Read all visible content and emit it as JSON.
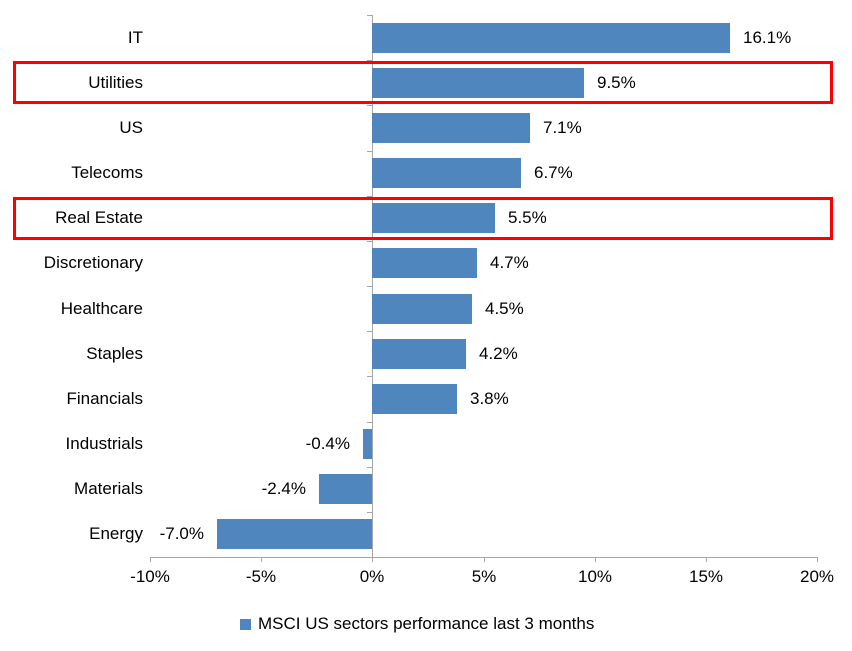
{
  "chart_data": {
    "type": "bar",
    "orientation": "horizontal",
    "title": "",
    "categories": [
      "IT",
      "Utilities",
      "US",
      "Telecoms",
      "Real Estate",
      "Discretionary",
      "Healthcare",
      "Staples",
      "Financials",
      "Industrials",
      "Materials",
      "Energy"
    ],
    "values": [
      16.1,
      9.5,
      7.1,
      6.7,
      5.5,
      4.7,
      4.5,
      4.2,
      3.8,
      -0.4,
      -2.4,
      -7.0
    ],
    "value_labels": [
      "16.1%",
      "9.5%",
      "7.1%",
      "6.7%",
      "5.5%",
      "4.7%",
      "4.5%",
      "4.2%",
      "3.8%",
      "-0.4%",
      "-2.4%",
      "-7.0%"
    ],
    "highlighted_categories": [
      "Utilities",
      "Real Estate"
    ],
    "highlight_indices": [
      1,
      4
    ],
    "x_axis": {
      "min": -10,
      "max": 20,
      "tick_values": [
        -10,
        -5,
        0,
        5,
        10,
        15,
        20
      ],
      "tick_labels": [
        "-10%",
        "-5%",
        "0%",
        "5%",
        "10%",
        "15%",
        "20%"
      ]
    },
    "legend": {
      "label": "MSCI US sectors performance last 3 months",
      "position": "bottom"
    },
    "colors": {
      "bar": "#4e86bd",
      "highlight_box": "#ff0000",
      "axis": "#a6a6a6",
      "text": "#000000",
      "background": "#ffffff"
    },
    "grid": false
  }
}
